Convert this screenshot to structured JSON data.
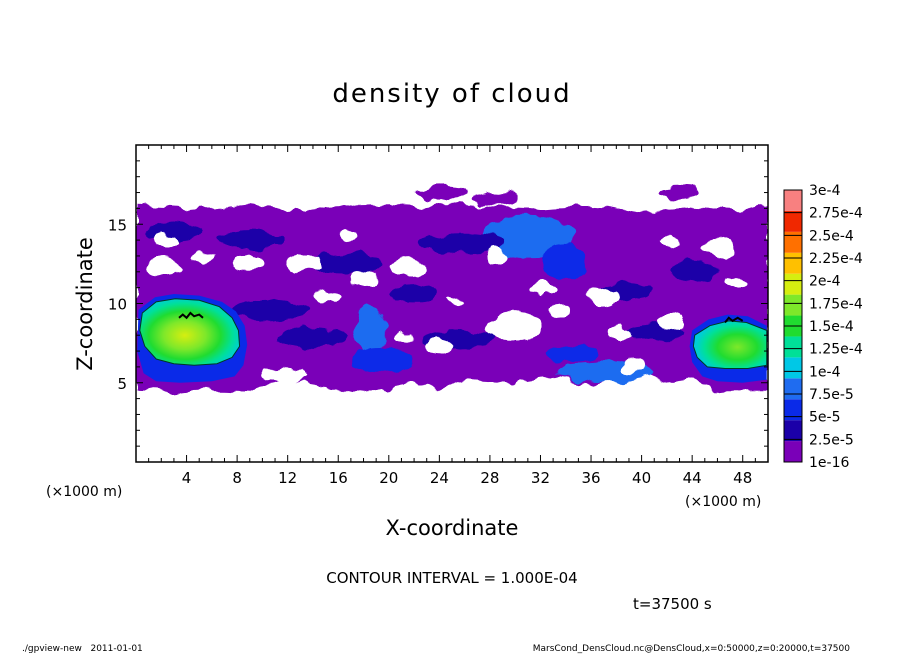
{
  "chart_data": {
    "type": "heatmap",
    "title": "density of cloud",
    "xlabel": "X-coordinate",
    "ylabel": "Z-coordinate",
    "x_unit": "(×1000 m)",
    "x_unit_right": "(×1000 m)",
    "xlim": [
      0,
      50
    ],
    "ylim": [
      0,
      20
    ],
    "x_ticks": [
      "4",
      "8",
      "12",
      "16",
      "20",
      "24",
      "28",
      "32",
      "36",
      "40",
      "44",
      "48"
    ],
    "y_ticks": [
      "5",
      "10",
      "15"
    ],
    "colorbar": {
      "labels": [
        "3e-4",
        "2.75e-4",
        "2.5e-4",
        "2.25e-4",
        "2e-4",
        "1.75e-4",
        "1.5e-4",
        "1.25e-4",
        "1e-4",
        "7.5e-5",
        "5e-5",
        "2.5e-5",
        "1e-16"
      ],
      "colors": [
        "#7a00b8",
        "#1b00a8",
        "#0a2ae8",
        "#1f6cf0",
        "#00c8e6",
        "#00e098",
        "#20dc30",
        "#7ee82a",
        "#d6ee10",
        "#ffc000",
        "#ff7000",
        "#f02800",
        "#f88080"
      ]
    },
    "cloud_regions": [
      {
        "name": "main cloud layer",
        "x_range": [
          0,
          50
        ],
        "z_range": [
          4.5,
          16.3
        ],
        "level": "1e-16 to 2.5e-5"
      },
      {
        "name": "left dense core",
        "x_range": [
          0.2,
          9
        ],
        "z_range": [
          4.8,
          10.3
        ],
        "level": "up to 1.5e-4"
      },
      {
        "name": "right dense core",
        "x_range": [
          44,
          50
        ],
        "z_range": [
          5.2,
          9.2
        ],
        "level": "up to 1.5e-4"
      },
      {
        "name": "upper blue patch",
        "x_range": [
          29,
          36
        ],
        "z_range": [
          11.5,
          15.5
        ],
        "level": "5e-5"
      }
    ]
  },
  "annotations": {
    "contour_interval": "CONTOUR INTERVAL = 1.000E-04",
    "time": "t=37500 s"
  },
  "footer": {
    "left": "./gpview-new   2011-01-01",
    "right": "MarsCond_DensCloud.nc@DensCloud,x=0:50000,z=0:20000,t=37500"
  }
}
